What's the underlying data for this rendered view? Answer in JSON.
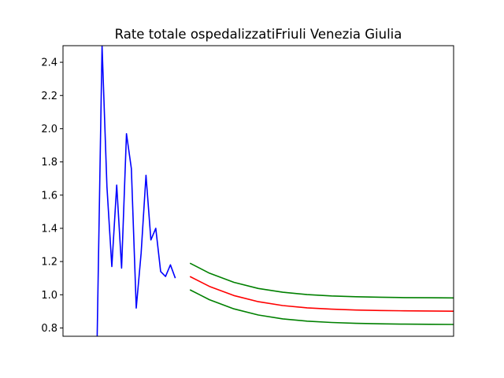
{
  "chart_data": {
    "type": "line",
    "title": "Rate totale ospedalizzatiFriuli Venezia Giulia",
    "xlabel": "",
    "ylabel": "",
    "ylim": [
      0.75,
      2.5
    ],
    "xlim": [
      0,
      80
    ],
    "x_tick_labels_shown": false,
    "yticks": [
      "0.8",
      "1.0",
      "1.2",
      "1.4",
      "1.6",
      "1.8",
      "2.0",
      "2.2",
      "2.4"
    ],
    "grid": false,
    "legend": "none",
    "series": [
      {
        "color": "#0000ff",
        "style": "observed",
        "x": [
          7,
          8,
          9,
          10,
          11,
          12,
          13,
          14,
          15,
          16,
          17,
          18,
          19,
          20,
          21,
          22,
          23,
          24,
          25
        ],
        "y": [
          0.75,
          2.5,
          1.65,
          1.17,
          1.66,
          1.16,
          1.97,
          1.76,
          0.92,
          1.25,
          1.72,
          1.33,
          1.4,
          1.14,
          1.11,
          1.18,
          1.1,
          null,
          null
        ]
      },
      {
        "color": "#ff0000",
        "style": "forecast",
        "x": [
          26,
          30,
          35,
          40,
          45,
          50,
          55,
          60,
          65,
          70,
          75,
          80,
          86
        ],
        "y": [
          1.11,
          1.05,
          0.995,
          0.958,
          0.935,
          0.921,
          0.913,
          0.908,
          0.905,
          0.903,
          0.902,
          0.901,
          0.9
        ]
      },
      {
        "color": "#008000",
        "style": "upper-bound",
        "x": [
          26,
          30,
          35,
          40,
          45,
          50,
          55,
          60,
          65,
          70,
          75,
          80,
          86
        ],
        "y": [
          1.19,
          1.13,
          1.075,
          1.038,
          1.015,
          1.001,
          0.993,
          0.988,
          0.985,
          0.983,
          0.982,
          0.981,
          0.98
        ]
      },
      {
        "color": "#008000",
        "style": "lower-bound",
        "x": [
          26,
          30,
          35,
          40,
          45,
          50,
          55,
          60,
          65,
          70,
          75,
          80,
          86
        ],
        "y": [
          1.03,
          0.97,
          0.915,
          0.878,
          0.855,
          0.841,
          0.833,
          0.828,
          0.825,
          0.823,
          0.822,
          0.821,
          0.82
        ]
      }
    ]
  }
}
